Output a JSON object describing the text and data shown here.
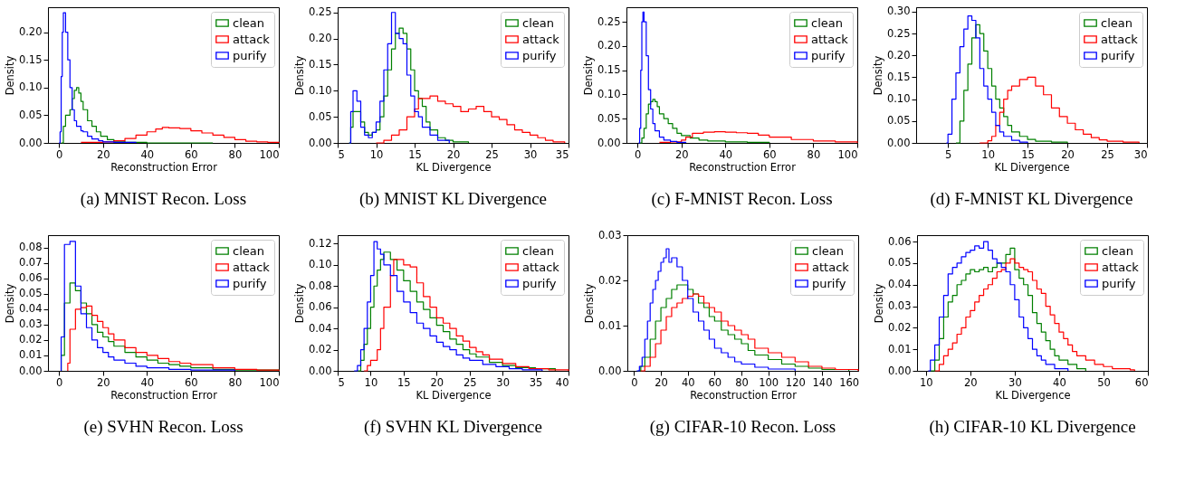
{
  "chart_data": [
    {
      "type": "step",
      "title": "(a) MNIST Recon. Loss",
      "xlabel": "Reconstruction Error",
      "ylabel": "Density",
      "legend": "top right",
      "xlim": [
        -5,
        100
      ],
      "xticks": [
        0,
        20,
        40,
        60,
        80,
        100
      ],
      "ylim": [
        0,
        0.245
      ],
      "yticks": [
        {
          "value": 0,
          "label": "0.00"
        },
        {
          "value": 0.05,
          "label": "0.05"
        },
        {
          "value": 0.1,
          "label": "0.10"
        },
        {
          "value": 0.15,
          "label": "0.15"
        },
        {
          "value": 0.2,
          "label": "0.20"
        }
      ],
      "series": [
        {
          "name": "clean",
          "color": "#008000",
          "x": [
            1,
            2,
            3,
            5,
            6,
            7,
            8,
            9,
            10,
            11,
            13,
            15,
            17,
            19,
            22,
            25,
            30,
            40,
            70
          ],
          "values": [
            0,
            0.03,
            0.05,
            0.06,
            0.08,
            0.095,
            0.1,
            0.09,
            0.075,
            0.06,
            0.04,
            0.03,
            0.02,
            0.012,
            0.006,
            0.003,
            0.001,
            0,
            0
          ]
        },
        {
          "name": "attack",
          "color": "#ff0000",
          "x": [
            10,
            20,
            25,
            30,
            35,
            40,
            44,
            47,
            50,
            55,
            60,
            65,
            70,
            75,
            80,
            85,
            90,
            95,
            100
          ],
          "values": [
            0.001,
            0.002,
            0.004,
            0.008,
            0.014,
            0.02,
            0.025,
            0.028,
            0.027,
            0.026,
            0.022,
            0.018,
            0.014,
            0.01,
            0.006,
            0.003,
            0.002,
            0.001,
            0
          ]
        },
        {
          "name": "purify",
          "color": "#0000ff",
          "x": [
            0,
            0.5,
            1,
            1.5,
            2,
            3,
            4,
            5,
            6,
            7,
            8,
            10,
            11,
            13,
            15,
            18,
            20,
            25,
            35
          ],
          "values": [
            0,
            0.02,
            0.12,
            0.2,
            0.235,
            0.2,
            0.15,
            0.1,
            0.06,
            0.04,
            0.03,
            0.022,
            0.02,
            0.012,
            0.007,
            0.004,
            0.002,
            0.001,
            0
          ]
        }
      ]
    },
    {
      "type": "step",
      "title": "(b) MNIST KL Divergence",
      "xlabel": "KL Divergence",
      "ylabel": "Density",
      "legend": "top right",
      "xlim": [
        5,
        35
      ],
      "xticks": [
        5,
        10,
        15,
        20,
        25,
        30,
        35
      ],
      "ylim": [
        0,
        0.26
      ],
      "yticks": [
        {
          "value": 0,
          "label": "0.00"
        },
        {
          "value": 0.05,
          "label": "0.05"
        },
        {
          "value": 0.1,
          "label": "0.10"
        },
        {
          "value": 0.15,
          "label": "0.15"
        },
        {
          "value": 0.2,
          "label": "0.20"
        },
        {
          "value": 0.25,
          "label": "0.25"
        }
      ],
      "series": [
        {
          "name": "clean",
          "color": "#008000",
          "x": [
            6.5,
            6.7,
            7,
            7.5,
            8,
            8.5,
            9,
            9.5,
            10,
            10.5,
            11,
            11.5,
            12,
            12.5,
            13,
            13.5,
            14,
            14.5,
            15,
            15.5,
            16,
            16.5,
            17,
            18,
            19,
            20,
            22
          ],
          "values": [
            0,
            0.03,
            0.06,
            0.06,
            0.04,
            0.02,
            0.015,
            0.02,
            0.025,
            0.05,
            0.09,
            0.14,
            0.18,
            0.21,
            0.22,
            0.21,
            0.18,
            0.14,
            0.1,
            0.085,
            0.07,
            0.04,
            0.025,
            0.01,
            0.005,
            0.002,
            0
          ]
        },
        {
          "name": "attack",
          "color": "#ff0000",
          "x": [
            10,
            11,
            12,
            13,
            14,
            15,
            15.5,
            16,
            17,
            18,
            19,
            20,
            21,
            22,
            23,
            24,
            25,
            26,
            27,
            28,
            29,
            30,
            31,
            32,
            33,
            34.5
          ],
          "values": [
            0,
            0.005,
            0.015,
            0.025,
            0.05,
            0.065,
            0.085,
            0.085,
            0.09,
            0.08,
            0.075,
            0.07,
            0.06,
            0.065,
            0.07,
            0.06,
            0.05,
            0.045,
            0.035,
            0.025,
            0.02,
            0.015,
            0.01,
            0.005,
            0.002,
            0
          ]
        },
        {
          "name": "purify",
          "color": "#0000ff",
          "x": [
            6.5,
            6.7,
            7,
            7.5,
            8,
            8.5,
            9,
            9.5,
            10,
            10.5,
            11,
            11.5,
            12,
            12.5,
            13,
            13.5,
            14,
            14.5,
            15,
            15.5,
            16,
            17,
            18,
            19.5
          ],
          "values": [
            0,
            0.06,
            0.1,
            0.08,
            0.03,
            0.015,
            0.01,
            0.02,
            0.04,
            0.08,
            0.14,
            0.19,
            0.25,
            0.21,
            0.2,
            0.19,
            0.13,
            0.09,
            0.06,
            0.05,
            0.03,
            0.015,
            0.005,
            0
          ]
        }
      ]
    },
    {
      "type": "step",
      "title": "(c) F-MNIST Recon. Loss",
      "xlabel": "Reconstruction Error",
      "ylabel": "Density",
      "legend": "top right",
      "xlim": [
        -5,
        100
      ],
      "xticks": [
        0,
        20,
        40,
        60,
        80,
        100
      ],
      "ylim": [
        0,
        0.28
      ],
      "yticks": [
        {
          "value": 0,
          "label": "0.00"
        },
        {
          "value": 0.05,
          "label": "0.05"
        },
        {
          "value": 0.1,
          "label": "0.10"
        },
        {
          "value": 0.15,
          "label": "0.15"
        },
        {
          "value": 0.2,
          "label": "0.20"
        },
        {
          "value": 0.25,
          "label": "0.25"
        }
      ],
      "series": [
        {
          "name": "clean",
          "color": "#008000",
          "x": [
            1,
            2,
            3,
            4,
            5,
            6,
            7,
            8,
            9,
            10,
            12,
            14,
            16,
            18,
            20,
            24,
            28,
            32,
            40,
            50,
            60
          ],
          "values": [
            0,
            0.01,
            0.03,
            0.06,
            0.08,
            0.085,
            0.09,
            0.085,
            0.075,
            0.06,
            0.05,
            0.04,
            0.03,
            0.02,
            0.015,
            0.01,
            0.006,
            0.004,
            0.002,
            0.001,
            0
          ]
        },
        {
          "name": "attack",
          "color": "#ff0000",
          "x": [
            10,
            15,
            20,
            22,
            25,
            30,
            35,
            40,
            45,
            50,
            55,
            60,
            70,
            80,
            90,
            100
          ],
          "values": [
            0.001,
            0.002,
            0.006,
            0.012,
            0.02,
            0.022,
            0.023,
            0.022,
            0.021,
            0.02,
            0.016,
            0.012,
            0.007,
            0.004,
            0.002,
            0
          ]
        },
        {
          "name": "purify",
          "color": "#0000ff",
          "x": [
            0.5,
            1,
            1.5,
            2,
            2.5,
            3,
            4,
            5,
            6,
            7,
            8,
            10,
            12,
            15,
            18,
            22
          ],
          "values": [
            0,
            0.03,
            0.15,
            0.25,
            0.27,
            0.25,
            0.18,
            0.11,
            0.07,
            0.04,
            0.025,
            0.012,
            0.006,
            0.003,
            0.001,
            0
          ]
        }
      ]
    },
    {
      "type": "step",
      "title": "(d) F-MNIST KL Divergence",
      "xlabel": "KL Divergence",
      "ylabel": "Density",
      "legend": "top right",
      "xlim": [
        1,
        30
      ],
      "xticks": [
        5,
        10,
        15,
        20,
        25,
        30
      ],
      "ylim": [
        0,
        0.31
      ],
      "yticks": [
        {
          "value": 0,
          "label": "0.00"
        },
        {
          "value": 0.05,
          "label": "0.05"
        },
        {
          "value": 0.1,
          "label": "0.10"
        },
        {
          "value": 0.15,
          "label": "0.15"
        },
        {
          "value": 0.2,
          "label": "0.20"
        },
        {
          "value": 0.25,
          "label": "0.25"
        },
        {
          "value": 0.3,
          "label": "0.30"
        }
      ],
      "series": [
        {
          "name": "clean",
          "color": "#008000",
          "x": [
            6,
            6.5,
            7,
            7.5,
            8,
            8.5,
            9,
            9.5,
            10,
            10.5,
            11,
            11.5,
            12,
            12.5,
            13,
            14,
            15,
            16,
            18,
            20
          ],
          "values": [
            0,
            0.05,
            0.12,
            0.18,
            0.24,
            0.27,
            0.25,
            0.21,
            0.17,
            0.13,
            0.1,
            0.08,
            0.06,
            0.04,
            0.025,
            0.015,
            0.008,
            0.004,
            0.002,
            0
          ]
        },
        {
          "name": "attack",
          "color": "#ff0000",
          "x": [
            9,
            10,
            10.5,
            11,
            11.5,
            12,
            12.5,
            13,
            14,
            15,
            16,
            17,
            18,
            19,
            20,
            21,
            22,
            23,
            24,
            25,
            27,
            29
          ],
          "values": [
            0,
            0.005,
            0.015,
            0.04,
            0.07,
            0.1,
            0.12,
            0.13,
            0.145,
            0.15,
            0.13,
            0.11,
            0.08,
            0.06,
            0.045,
            0.03,
            0.02,
            0.012,
            0.007,
            0.004,
            0.002,
            0
          ]
        },
        {
          "name": "purify",
          "color": "#0000ff",
          "x": [
            4.8,
            5,
            5.5,
            6,
            6.5,
            7,
            7.5,
            8,
            8.5,
            9,
            9.5,
            10,
            10.5,
            11,
            11.5,
            12,
            13,
            14,
            15
          ],
          "values": [
            0,
            0.02,
            0.1,
            0.16,
            0.22,
            0.26,
            0.29,
            0.28,
            0.24,
            0.17,
            0.13,
            0.1,
            0.07,
            0.04,
            0.025,
            0.015,
            0.006,
            0.002,
            0
          ]
        }
      ]
    },
    {
      "type": "step",
      "title": "(e) SVHN Recon. Loss",
      "xlabel": "Reconstruction Error",
      "ylabel": "Density",
      "legend": "top right",
      "xlim": [
        -5,
        100
      ],
      "xticks": [
        0,
        20,
        40,
        60,
        80,
        100
      ],
      "ylim": [
        0,
        0.088
      ],
      "yticks": [
        {
          "value": 0,
          "label": "0.00"
        },
        {
          "value": 0.01,
          "label": "0.01"
        },
        {
          "value": 0.02,
          "label": "0.02"
        },
        {
          "value": 0.03,
          "label": "0.03"
        },
        {
          "value": 0.04,
          "label": "0.04"
        },
        {
          "value": 0.05,
          "label": "0.05"
        },
        {
          "value": 0.06,
          "label": "0.06"
        },
        {
          "value": 0.07,
          "label": "0.07"
        },
        {
          "value": 0.08,
          "label": "0.08"
        }
      ],
      "series": [
        {
          "name": "clean",
          "color": "#008000",
          "x": [
            1,
            1,
            2.5,
            5,
            7.5,
            10,
            12.5,
            15,
            17.5,
            20,
            22.5,
            25,
            30,
            35,
            40,
            45,
            50,
            55,
            60,
            70,
            80,
            100
          ],
          "values": [
            0,
            0.01,
            0.044,
            0.057,
            0.052,
            0.044,
            0.037,
            0.03,
            0.025,
            0.022,
            0.019,
            0.016,
            0.012,
            0.009,
            0.007,
            0.005,
            0.004,
            0.003,
            0.002,
            0.001,
            0.0005,
            0
          ]
        },
        {
          "name": "attack",
          "color": "#ff0000",
          "x": [
            4,
            4,
            5,
            7.5,
            10,
            12.5,
            15,
            17.5,
            20,
            22.5,
            25,
            30,
            35,
            40,
            45,
            50,
            55,
            60,
            70,
            80,
            90,
            100
          ],
          "values": [
            0,
            0.005,
            0.027,
            0.04,
            0.041,
            0.042,
            0.036,
            0.032,
            0.028,
            0.024,
            0.02,
            0.015,
            0.012,
            0.01,
            0.008,
            0.006,
            0.005,
            0.004,
            0.002,
            0.001,
            0.0005,
            0
          ]
        },
        {
          "name": "purify",
          "color": "#0000ff",
          "x": [
            1,
            1,
            2.5,
            5,
            7.5,
            10,
            12.5,
            15,
            17.5,
            20,
            22.5,
            25,
            30,
            35,
            40,
            50,
            60,
            80
          ],
          "values": [
            0,
            0.022,
            0.082,
            0.084,
            0.055,
            0.037,
            0.028,
            0.02,
            0.015,
            0.012,
            0.009,
            0.007,
            0.005,
            0.003,
            0.002,
            0.001,
            0.0005,
            0
          ]
        }
      ]
    },
    {
      "type": "step",
      "title": "(f) SVHN KL Divergence",
      "xlabel": "KL Divergence",
      "ylabel": "Density",
      "legend": "top right",
      "xlim": [
        5,
        40
      ],
      "xticks": [
        5,
        10,
        15,
        20,
        25,
        30,
        35,
        40
      ],
      "ylim": [
        0,
        0.128
      ],
      "yticks": [
        {
          "value": 0,
          "label": "0.00"
        },
        {
          "value": 0.02,
          "label": "0.02"
        },
        {
          "value": 0.04,
          "label": "0.04"
        },
        {
          "value": 0.06,
          "label": "0.06"
        },
        {
          "value": 0.08,
          "label": "0.08"
        },
        {
          "value": 0.1,
          "label": "0.10"
        },
        {
          "value": 0.12,
          "label": "0.12"
        }
      ],
      "series": [
        {
          "name": "clean",
          "color": "#008000",
          "x": [
            8,
            8.5,
            9,
            9.5,
            10,
            10.5,
            11,
            11.5,
            12,
            13,
            14,
            15,
            16,
            17,
            18,
            19,
            20,
            21,
            22,
            23,
            24,
            25,
            26,
            28,
            30,
            32,
            35,
            38
          ],
          "values": [
            0,
            0.01,
            0.025,
            0.04,
            0.06,
            0.08,
            0.095,
            0.105,
            0.112,
            0.105,
            0.095,
            0.085,
            0.075,
            0.065,
            0.058,
            0.05,
            0.043,
            0.037,
            0.03,
            0.025,
            0.02,
            0.016,
            0.013,
            0.008,
            0.005,
            0.003,
            0.002,
            0
          ]
        },
        {
          "name": "attack",
          "color": "#ff0000",
          "x": [
            9,
            9.5,
            10,
            11,
            11.5,
            12,
            13,
            13.5,
            14,
            15,
            16,
            17,
            18,
            19,
            20,
            21,
            22,
            23,
            24,
            25,
            26,
            27,
            28,
            30,
            32,
            34,
            37,
            40
          ],
          "values": [
            0,
            0.005,
            0.01,
            0.02,
            0.04,
            0.06,
            0.09,
            0.105,
            0.105,
            0.1,
            0.098,
            0.083,
            0.07,
            0.06,
            0.05,
            0.045,
            0.04,
            0.033,
            0.028,
            0.022,
            0.018,
            0.015,
            0.011,
            0.007,
            0.004,
            0.002,
            0.001,
            0
          ]
        },
        {
          "name": "purify",
          "color": "#0000ff",
          "x": [
            7.5,
            8,
            8.5,
            9,
            9.5,
            10,
            10.5,
            11,
            11.5,
            12,
            13,
            14,
            15,
            16,
            17,
            18,
            19,
            20,
            21,
            22,
            23,
            24,
            25,
            27,
            29,
            31,
            33,
            36
          ],
          "values": [
            0,
            0.005,
            0.02,
            0.04,
            0.065,
            0.09,
            0.122,
            0.115,
            0.11,
            0.1,
            0.09,
            0.075,
            0.065,
            0.055,
            0.045,
            0.04,
            0.033,
            0.027,
            0.023,
            0.02,
            0.015,
            0.012,
            0.01,
            0.006,
            0.004,
            0.002,
            0.001,
            0
          ]
        }
      ]
    },
    {
      "type": "step",
      "title": "(g) CIFAR-10 Recon. Loss",
      "xlabel": "Reconstruction Error",
      "ylabel": "Density",
      "legend": "top right",
      "xlim": [
        -5,
        167
      ],
      "xticks": [
        0,
        20,
        40,
        60,
        80,
        100,
        120,
        140,
        160
      ],
      "ylim": [
        0,
        0.03
      ],
      "yticks": [
        {
          "value": 0,
          "label": "0.00"
        },
        {
          "value": 0.01,
          "label": "0.01"
        },
        {
          "value": 0.02,
          "label": "0.02"
        },
        {
          "value": 0.03,
          "label": "0.03"
        }
      ],
      "series": [
        {
          "name": "clean",
          "color": "#008000",
          "x": [
            3,
            5,
            8,
            12,
            16,
            20,
            24,
            28,
            32,
            36,
            40,
            44,
            48,
            52,
            56,
            60,
            65,
            70,
            75,
            80,
            85,
            90,
            100,
            110,
            120,
            130,
            140,
            160
          ],
          "values": [
            0,
            0.001,
            0.003,
            0.007,
            0.011,
            0.014,
            0.016,
            0.018,
            0.019,
            0.019,
            0.018,
            0.017,
            0.015,
            0.014,
            0.012,
            0.011,
            0.009,
            0.008,
            0.007,
            0.006,
            0.0045,
            0.0035,
            0.0025,
            0.0015,
            0.001,
            0.0006,
            0.0003,
            0
          ]
        },
        {
          "name": "attack",
          "color": "#ff0000",
          "x": [
            5,
            8,
            12,
            16,
            20,
            24,
            28,
            32,
            36,
            40,
            44,
            48,
            52,
            56,
            60,
            65,
            70,
            75,
            80,
            85,
            90,
            100,
            110,
            120,
            130,
            140,
            150,
            167
          ],
          "values": [
            0,
            0.001,
            0.003,
            0.006,
            0.009,
            0.012,
            0.014,
            0.015,
            0.016,
            0.0165,
            0.017,
            0.0165,
            0.015,
            0.014,
            0.013,
            0.011,
            0.01,
            0.009,
            0.008,
            0.007,
            0.005,
            0.004,
            0.003,
            0.002,
            0.001,
            0.0006,
            0.0003,
            0
          ]
        },
        {
          "name": "purify",
          "color": "#0000ff",
          "x": [
            2,
            4,
            6,
            8,
            10,
            12,
            14,
            16,
            18,
            20,
            22,
            24,
            26,
            28,
            32,
            36,
            40,
            44,
            48,
            52,
            56,
            60,
            65,
            70,
            75,
            80,
            90,
            100,
            120
          ],
          "values": [
            0,
            0.001,
            0.003,
            0.007,
            0.011,
            0.015,
            0.018,
            0.02,
            0.022,
            0.024,
            0.025,
            0.027,
            0.024,
            0.025,
            0.023,
            0.02,
            0.016,
            0.013,
            0.011,
            0.009,
            0.007,
            0.005,
            0.004,
            0.003,
            0.002,
            0.0015,
            0.0008,
            0.0004,
            0
          ]
        }
      ]
    },
    {
      "type": "step",
      "title": "(h) CIFAR-10 KL Divergence",
      "xlabel": "KL Divergence",
      "ylabel": "Density",
      "legend": "top right",
      "xlim": [
        8,
        60
      ],
      "xticks": [
        10,
        20,
        30,
        40,
        50,
        60
      ],
      "ylim": [
        0,
        0.063
      ],
      "yticks": [
        {
          "value": 0,
          "label": "0.00"
        },
        {
          "value": 0.01,
          "label": "0.01"
        },
        {
          "value": 0.02,
          "label": "0.02"
        },
        {
          "value": 0.03,
          "label": "0.03"
        },
        {
          "value": 0.04,
          "label": "0.04"
        },
        {
          "value": 0.05,
          "label": "0.05"
        },
        {
          "value": 0.06,
          "label": "0.06"
        }
      ],
      "series": [
        {
          "name": "clean",
          "color": "#008000",
          "x": [
            11,
            12,
            13,
            14,
            15,
            16,
            17,
            18,
            19,
            20,
            21,
            22,
            23,
            24,
            25,
            26,
            27,
            28,
            29,
            30,
            31,
            32,
            33,
            34,
            35,
            36,
            37,
            38,
            39,
            40,
            42,
            44,
            46
          ],
          "values": [
            0,
            0.005,
            0.015,
            0.025,
            0.032,
            0.035,
            0.04,
            0.042,
            0.045,
            0.047,
            0.046,
            0.047,
            0.048,
            0.046,
            0.048,
            0.05,
            0.05,
            0.054,
            0.057,
            0.047,
            0.043,
            0.04,
            0.035,
            0.027,
            0.022,
            0.018,
            0.014,
            0.01,
            0.007,
            0.005,
            0.003,
            0.001,
            0
          ]
        },
        {
          "name": "attack",
          "color": "#ff0000",
          "x": [
            12,
            13,
            14,
            15,
            16,
            17,
            18,
            19,
            20,
            21,
            22,
            23,
            24,
            25,
            26,
            27,
            28,
            29,
            30,
            31,
            32,
            33,
            34,
            35,
            36,
            37,
            38,
            39,
            40,
            41,
            42,
            43,
            44,
            46,
            48,
            50,
            52,
            56,
            57
          ],
          "values": [
            0,
            0.003,
            0.007,
            0.01,
            0.013,
            0.017,
            0.02,
            0.025,
            0.028,
            0.032,
            0.035,
            0.038,
            0.04,
            0.043,
            0.046,
            0.047,
            0.05,
            0.052,
            0.05,
            0.048,
            0.047,
            0.046,
            0.042,
            0.038,
            0.036,
            0.03,
            0.026,
            0.022,
            0.018,
            0.015,
            0.012,
            0.009,
            0.007,
            0.005,
            0.003,
            0.002,
            0.001,
            0.0005,
            0
          ]
        },
        {
          "name": "purify",
          "color": "#0000ff",
          "x": [
            10.5,
            11,
            12,
            13,
            14,
            15,
            16,
            17,
            18,
            19,
            20,
            21,
            22,
            23,
            24,
            25,
            26,
            27,
            28,
            29,
            30,
            31,
            32,
            33,
            34,
            35,
            36,
            37,
            39,
            42
          ],
          "values": [
            0,
            0.005,
            0.012,
            0.025,
            0.035,
            0.045,
            0.048,
            0.05,
            0.053,
            0.055,
            0.056,
            0.058,
            0.057,
            0.06,
            0.056,
            0.052,
            0.05,
            0.048,
            0.046,
            0.04,
            0.033,
            0.025,
            0.02,
            0.015,
            0.01,
            0.007,
            0.005,
            0.003,
            0.001,
            0
          ]
        }
      ]
    }
  ]
}
